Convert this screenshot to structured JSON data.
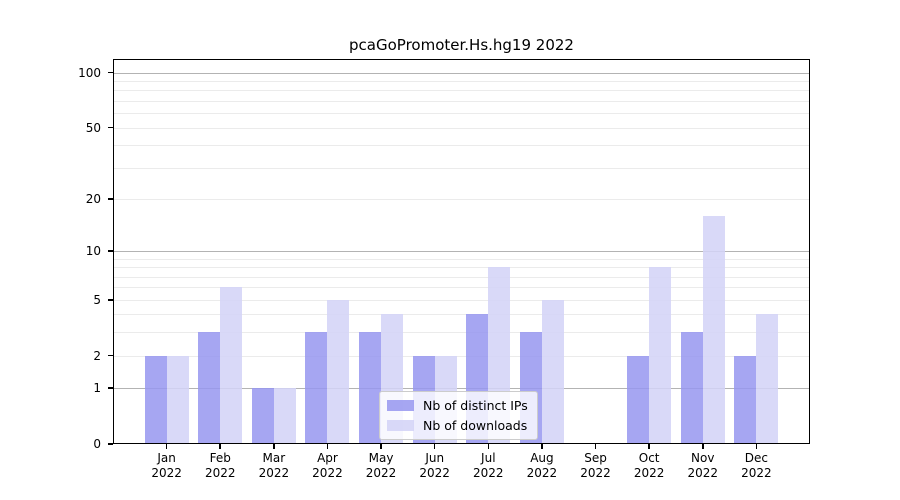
{
  "figure": {
    "title": "pcaGoPromoter.Hs.hg19 2022"
  },
  "chart_data": {
    "type": "bar",
    "title": "pcaGoPromoter.Hs.hg19 2022",
    "categories": [
      "Jan 2022",
      "Feb 2022",
      "Mar 2022",
      "Apr 2022",
      "May 2022",
      "Jun 2022",
      "Jul 2022",
      "Aug 2022",
      "Sep 2022",
      "Oct 2022",
      "Nov 2022",
      "Dec 2022"
    ],
    "series": [
      {
        "name": "Nb of distinct IPs",
        "values": [
          2,
          3,
          1,
          3,
          3,
          2,
          4,
          3,
          0,
          2,
          3,
          2
        ],
        "color": "#a9a9f2",
        "fill": "rgba(150,150,240,0.85)"
      },
      {
        "name": "Nb of downloads",
        "values": [
          2,
          6,
          1,
          5,
          4,
          2,
          8,
          5,
          0,
          8,
          16,
          4
        ],
        "color": "#d9d9f8",
        "fill": "rgba(211,211,247,0.87)"
      }
    ],
    "xlabel": "",
    "ylabel": "",
    "yscale": "log1p",
    "ylim": [
      0,
      118.6
    ],
    "yticks": [
      0,
      1,
      2,
      5,
      10,
      20,
      50,
      100
    ],
    "grid": {
      "on": true,
      "major": [
        1,
        10,
        100
      ],
      "minor": [
        2,
        3,
        4,
        5,
        6,
        7,
        8,
        9,
        20,
        30,
        40,
        50,
        60,
        70,
        80,
        90
      ],
      "major_color": "#b3b3b3",
      "minor_color": "#ebebeb"
    },
    "legend_position": "lower center",
    "frame_color": "#000000",
    "background_color": "#ffffff"
  }
}
